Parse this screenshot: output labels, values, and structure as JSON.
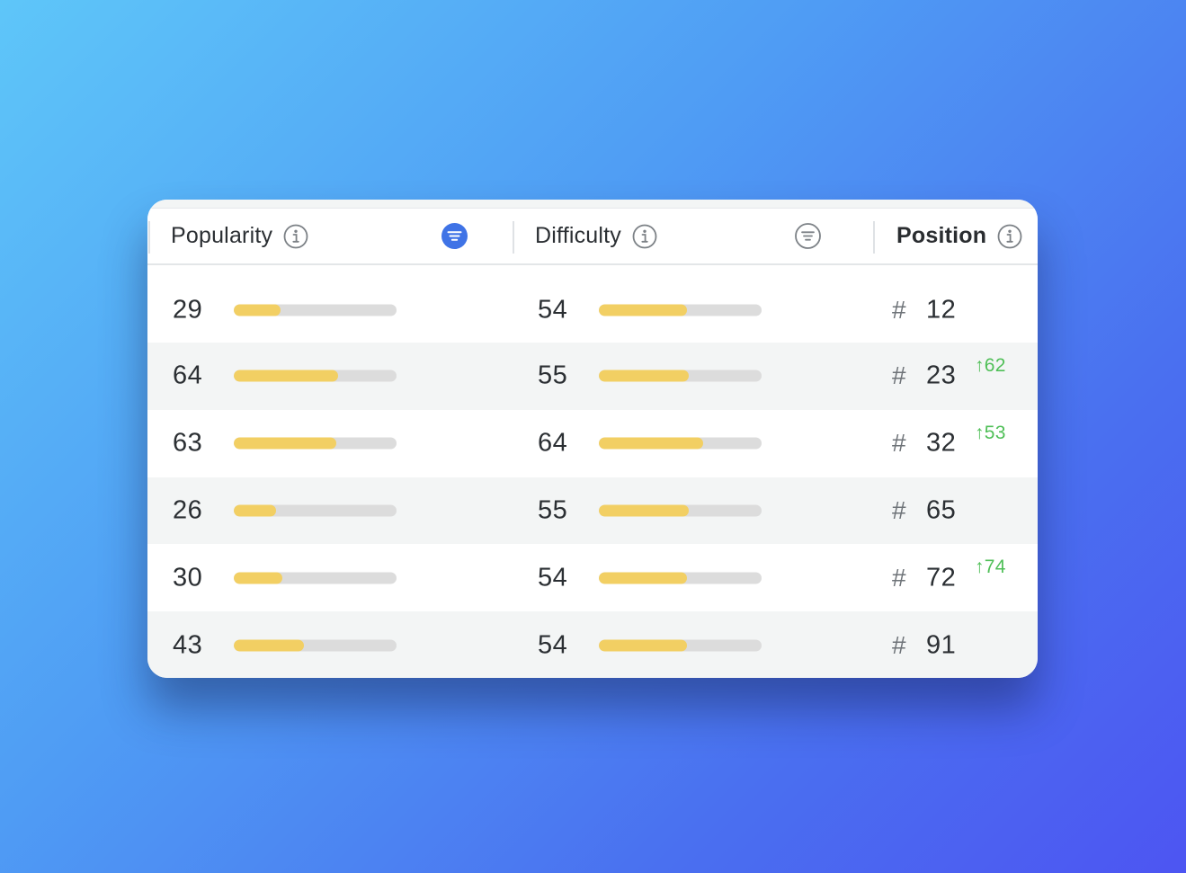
{
  "columns": {
    "popularity": {
      "label": "Popularity",
      "sorted": true
    },
    "difficulty": {
      "label": "Difficulty",
      "sorted": false
    },
    "position": {
      "label": "Position"
    }
  },
  "position_prefix": "#",
  "colors": {
    "bar_fill": "#f2cf63",
    "bar_track": "#dcdcdc",
    "filter_active": "#3f73e6",
    "change_positive": "#4fbf57"
  },
  "icons": {
    "info": "info-circle-icon",
    "filter": "filter-lines-icon"
  },
  "rows": [
    {
      "popularity": "29",
      "popularity_pct": 29,
      "difficulty": "54",
      "difficulty_pct": 54,
      "position": "12",
      "change": ""
    },
    {
      "popularity": "64",
      "popularity_pct": 64,
      "difficulty": "55",
      "difficulty_pct": 55,
      "position": "23",
      "change": "↑62"
    },
    {
      "popularity": "63",
      "popularity_pct": 63,
      "difficulty": "64",
      "difficulty_pct": 64,
      "position": "32",
      "change": "↑53"
    },
    {
      "popularity": "26",
      "popularity_pct": 26,
      "difficulty": "55",
      "difficulty_pct": 55,
      "position": "65",
      "change": ""
    },
    {
      "popularity": "30",
      "popularity_pct": 30,
      "difficulty": "54",
      "difficulty_pct": 54,
      "position": "72",
      "change": "↑74"
    },
    {
      "popularity": "43",
      "popularity_pct": 43,
      "difficulty": "54",
      "difficulty_pct": 54,
      "position": "91",
      "change": ""
    }
  ]
}
